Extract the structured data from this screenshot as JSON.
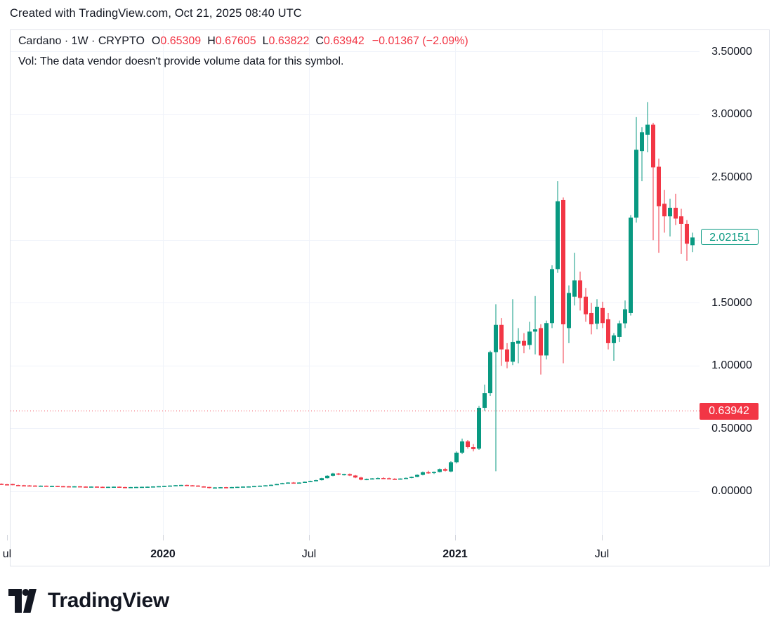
{
  "title": "Created with TradingView.com, Oct 21, 2025 08:40 UTC",
  "header": {
    "symbol": "Cardano · 1W · CRYPTO",
    "ohlc": [
      {
        "label": "O",
        "value": "0.65309"
      },
      {
        "label": "H",
        "value": "0.67605"
      },
      {
        "label": "L",
        "value": "0.63822"
      },
      {
        "label": "C",
        "value": "0.63942"
      }
    ],
    "change": "−0.01367 (−2.09%)",
    "vol_note": "Vol: The data vendor doesn't provide volume data for this symbol."
  },
  "colors": {
    "up": "#089981",
    "down": "#f23645",
    "text": "#131722",
    "grid": "#f0f3fa",
    "border": "#e0e3eb",
    "dotted_line": "#f23645"
  },
  "price_scale": {
    "labels": [
      {
        "text": "3.50000",
        "price": 3.5
      },
      {
        "text": "3.00000",
        "price": 3.0
      },
      {
        "text": "2.50000",
        "price": 2.5
      },
      {
        "text": "1.50000",
        "price": 1.5
      },
      {
        "text": "1.00000",
        "price": 1.0
      },
      {
        "text": "0.50000",
        "price": 0.5
      },
      {
        "text": "0.00000",
        "price": 0.0
      }
    ],
    "last_price_badge": {
      "text": "2.02151",
      "price": 2.02151
    },
    "current_price_badge": {
      "text": "0.63942",
      "price": 0.63942
    }
  },
  "time_scale": {
    "labels": [
      {
        "text": "ul",
        "x": 10,
        "bold": false
      },
      {
        "text": "2020",
        "x": 232,
        "bold": true
      },
      {
        "text": "Jul",
        "x": 440,
        "bold": false
      },
      {
        "text": "2021",
        "x": 648,
        "bold": true
      },
      {
        "text": "Jul",
        "x": 857,
        "bold": false
      }
    ]
  },
  "logo": {
    "text": "TradingView"
  },
  "chart_data": {
    "type": "candlestick",
    "title": "Cardano (ADA) weekly candlestick chart, Jul 2019 – Nov 2021 visible range",
    "symbol": "Cardano",
    "timeframe": "1W",
    "exchange": "CRYPTO",
    "ylim": [
      -0.4,
      3.7
    ],
    "grid_prices": [
      0.0,
      0.5,
      1.0,
      1.5,
      2.0,
      2.5,
      3.0,
      3.5
    ],
    "current_price_line": 0.63942,
    "last_close": 2.02151,
    "x_tick_labels": [
      "ul",
      "2020",
      "Jul",
      "2021",
      "Jul"
    ],
    "candles_ohlc": [
      [
        0.06,
        0.063,
        0.054,
        0.056
      ],
      [
        0.056,
        0.059,
        0.051,
        0.053
      ],
      [
        0.058,
        0.06,
        0.048,
        0.05
      ],
      [
        0.05,
        0.053,
        0.046,
        0.048
      ],
      [
        0.048,
        0.051,
        0.045,
        0.047
      ],
      [
        0.047,
        0.05,
        0.044,
        0.046
      ],
      [
        0.046,
        0.048,
        0.042,
        0.044
      ],
      [
        0.044,
        0.047,
        0.042,
        0.045
      ],
      [
        0.045,
        0.046,
        0.04,
        0.042
      ],
      [
        0.042,
        0.045,
        0.04,
        0.043
      ],
      [
        0.043,
        0.044,
        0.039,
        0.041
      ],
      [
        0.041,
        0.043,
        0.038,
        0.04
      ],
      [
        0.04,
        0.042,
        0.037,
        0.039
      ],
      [
        0.039,
        0.041,
        0.037,
        0.04
      ],
      [
        0.04,
        0.041,
        0.036,
        0.038
      ],
      [
        0.038,
        0.04,
        0.035,
        0.037
      ],
      [
        0.037,
        0.039,
        0.035,
        0.038
      ],
      [
        0.038,
        0.039,
        0.034,
        0.036
      ],
      [
        0.036,
        0.038,
        0.033,
        0.035
      ],
      [
        0.035,
        0.037,
        0.033,
        0.036
      ],
      [
        0.036,
        0.038,
        0.034,
        0.037
      ],
      [
        0.037,
        0.038,
        0.033,
        0.034
      ],
      [
        0.034,
        0.036,
        0.032,
        0.033
      ],
      [
        0.033,
        0.035,
        0.031,
        0.034
      ],
      [
        0.034,
        0.036,
        0.032,
        0.035
      ],
      [
        0.035,
        0.037,
        0.033,
        0.036
      ],
      [
        0.036,
        0.038,
        0.034,
        0.037
      ],
      [
        0.037,
        0.04,
        0.036,
        0.039
      ],
      [
        0.039,
        0.042,
        0.038,
        0.041
      ],
      [
        0.041,
        0.044,
        0.04,
        0.043
      ],
      [
        0.043,
        0.047,
        0.042,
        0.046
      ],
      [
        0.046,
        0.05,
        0.044,
        0.049
      ],
      [
        0.049,
        0.052,
        0.046,
        0.051
      ],
      [
        0.051,
        0.053,
        0.047,
        0.048
      ],
      [
        0.048,
        0.05,
        0.044,
        0.046
      ],
      [
        0.046,
        0.048,
        0.037,
        0.039
      ],
      [
        0.039,
        0.041,
        0.034,
        0.035
      ],
      [
        0.035,
        0.036,
        0.023,
        0.028
      ],
      [
        0.028,
        0.033,
        0.026,
        0.031
      ],
      [
        0.031,
        0.034,
        0.029,
        0.033
      ],
      [
        0.033,
        0.035,
        0.03,
        0.032
      ],
      [
        0.032,
        0.035,
        0.031,
        0.034
      ],
      [
        0.034,
        0.037,
        0.033,
        0.036
      ],
      [
        0.036,
        0.039,
        0.034,
        0.038
      ],
      [
        0.038,
        0.04,
        0.036,
        0.039
      ],
      [
        0.039,
        0.043,
        0.038,
        0.042
      ],
      [
        0.042,
        0.046,
        0.041,
        0.045
      ],
      [
        0.045,
        0.049,
        0.043,
        0.048
      ],
      [
        0.048,
        0.054,
        0.046,
        0.052
      ],
      [
        0.052,
        0.06,
        0.05,
        0.058
      ],
      [
        0.058,
        0.068,
        0.056,
        0.065
      ],
      [
        0.065,
        0.072,
        0.062,
        0.07
      ],
      [
        0.07,
        0.074,
        0.064,
        0.067
      ],
      [
        0.067,
        0.072,
        0.063,
        0.07
      ],
      [
        0.07,
        0.078,
        0.068,
        0.076
      ],
      [
        0.076,
        0.085,
        0.074,
        0.082
      ],
      [
        0.082,
        0.092,
        0.08,
        0.089
      ],
      [
        0.089,
        0.108,
        0.086,
        0.105
      ],
      [
        0.105,
        0.128,
        0.102,
        0.124
      ],
      [
        0.124,
        0.147,
        0.12,
        0.142
      ],
      [
        0.142,
        0.146,
        0.128,
        0.133
      ],
      [
        0.133,
        0.14,
        0.126,
        0.137
      ],
      [
        0.137,
        0.142,
        0.122,
        0.126
      ],
      [
        0.126,
        0.13,
        0.105,
        0.11
      ],
      [
        0.11,
        0.115,
        0.088,
        0.093
      ],
      [
        0.093,
        0.102,
        0.089,
        0.098
      ],
      [
        0.098,
        0.106,
        0.094,
        0.103
      ],
      [
        0.103,
        0.11,
        0.098,
        0.106
      ],
      [
        0.106,
        0.112,
        0.1,
        0.104
      ],
      [
        0.104,
        0.109,
        0.096,
        0.1
      ],
      [
        0.1,
        0.105,
        0.092,
        0.096
      ],
      [
        0.096,
        0.104,
        0.093,
        0.102
      ],
      [
        0.102,
        0.11,
        0.098,
        0.107
      ],
      [
        0.107,
        0.118,
        0.104,
        0.115
      ],
      [
        0.115,
        0.135,
        0.112,
        0.131
      ],
      [
        0.131,
        0.158,
        0.127,
        0.152
      ],
      [
        0.152,
        0.164,
        0.14,
        0.146
      ],
      [
        0.146,
        0.158,
        0.138,
        0.154
      ],
      [
        0.154,
        0.182,
        0.15,
        0.177
      ],
      [
        0.177,
        0.186,
        0.158,
        0.164
      ],
      [
        0.158,
        0.24,
        0.152,
        0.232
      ],
      [
        0.232,
        0.318,
        0.222,
        0.308
      ],
      [
        0.308,
        0.42,
        0.296,
        0.398
      ],
      [
        0.398,
        0.408,
        0.34,
        0.352
      ],
      [
        0.352,
        0.376,
        0.318,
        0.336
      ],
      [
        0.34,
        0.68,
        0.33,
        0.665
      ],
      [
        0.665,
        0.85,
        0.64,
        0.782
      ],
      [
        0.782,
        1.12,
        0.76,
        1.108
      ],
      [
        1.108,
        1.49,
        0.16,
        1.326
      ],
      [
        1.326,
        1.38,
        1.0,
        1.13
      ],
      [
        1.13,
        1.18,
        0.98,
        1.032
      ],
      [
        1.032,
        1.53,
        1.005,
        1.19
      ],
      [
        1.176,
        1.3,
        1.02,
        1.198
      ],
      [
        1.198,
        1.26,
        1.1,
        1.16
      ],
      [
        1.165,
        1.35,
        1.13,
        1.272
      ],
      [
        1.272,
        1.555,
        1.09,
        1.29
      ],
      [
        1.3,
        1.33,
        0.93,
        1.082
      ],
      [
        1.082,
        1.36,
        1.05,
        1.34
      ],
      [
        1.34,
        1.8,
        1.3,
        1.77
      ],
      [
        1.77,
        2.47,
        1.74,
        2.31
      ],
      [
        2.32,
        2.34,
        1.02,
        1.33
      ],
      [
        1.3,
        1.64,
        1.18,
        1.58
      ],
      [
        1.55,
        1.9,
        1.48,
        1.68
      ],
      [
        1.68,
        1.75,
        1.44,
        1.54
      ],
      [
        1.55,
        1.62,
        1.35,
        1.41
      ],
      [
        1.42,
        1.5,
        1.25,
        1.33
      ],
      [
        1.335,
        1.53,
        1.29,
        1.47
      ],
      [
        1.46,
        1.51,
        1.3,
        1.34
      ],
      [
        1.37,
        1.42,
        1.13,
        1.18
      ],
      [
        1.18,
        1.26,
        1.04,
        1.242
      ],
      [
        1.23,
        1.36,
        1.19,
        1.338
      ],
      [
        1.338,
        1.52,
        1.3,
        1.45
      ],
      [
        1.42,
        2.2,
        1.4,
        2.18
      ],
      [
        2.18,
        2.98,
        2.14,
        2.72
      ],
      [
        2.71,
        2.9,
        2.47,
        2.86
      ],
      [
        2.84,
        3.1,
        2.7,
        2.92
      ],
      [
        2.92,
        2.935,
        2.0,
        2.58
      ],
      [
        2.585,
        2.65,
        1.9,
        2.27
      ],
      [
        2.29,
        2.4,
        2.06,
        2.19
      ],
      [
        2.19,
        2.33,
        2.03,
        2.258
      ],
      [
        2.258,
        2.37,
        2.12,
        2.172
      ],
      [
        2.19,
        2.25,
        1.89,
        2.13
      ],
      [
        2.13,
        2.16,
        1.835,
        1.972
      ],
      [
        1.96,
        2.06,
        1.905,
        2.02151
      ]
    ]
  }
}
